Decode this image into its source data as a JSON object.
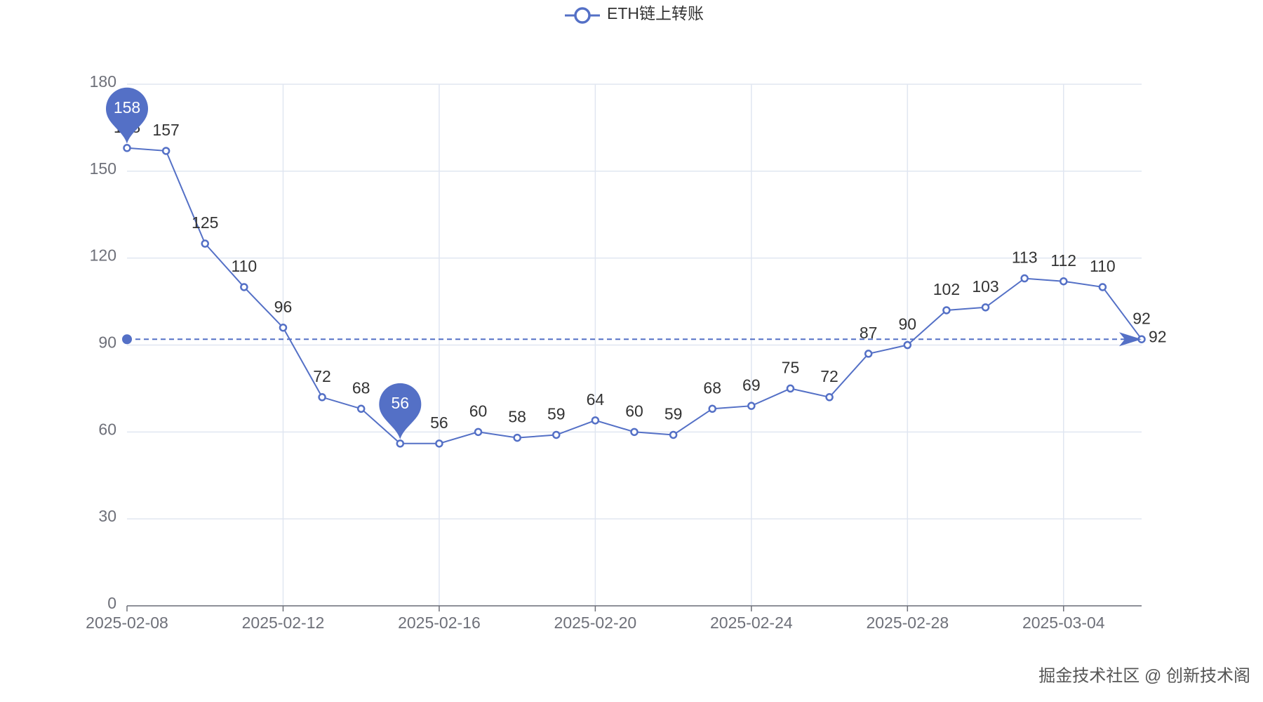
{
  "chart_data": {
    "type": "line",
    "x": [
      "2025-02-08",
      "2025-02-09",
      "2025-02-10",
      "2025-02-11",
      "2025-02-12",
      "2025-02-13",
      "2025-02-14",
      "2025-02-15",
      "2025-02-16",
      "2025-02-17",
      "2025-02-18",
      "2025-02-19",
      "2025-02-20",
      "2025-02-21",
      "2025-02-22",
      "2025-02-23",
      "2025-02-24",
      "2025-02-25",
      "2025-02-26",
      "2025-02-27",
      "2025-02-28",
      "2025-03-01",
      "2025-03-02",
      "2025-03-03",
      "2025-03-04",
      "2025-03-05",
      "2025-03-06"
    ],
    "series": [
      {
        "name": "ETH链上转账",
        "color": "#5470c6",
        "values": [
          158,
          157,
          125,
          110,
          96,
          72,
          68,
          56,
          56,
          60,
          58,
          59,
          64,
          60,
          59,
          68,
          69,
          75,
          72,
          87,
          90,
          102,
          103,
          113,
          112,
          110,
          92
        ]
      }
    ],
    "xlim": [
      "2025-02-08",
      "2025-03-06"
    ],
    "xticks": [
      "2025-02-08",
      "2025-02-12",
      "2025-02-16",
      "2025-02-20",
      "2025-02-24",
      "2025-02-28",
      "2025-03-04"
    ],
    "ylim": [
      0,
      180
    ],
    "yticks": [
      0,
      30,
      60,
      90,
      120,
      150,
      180
    ],
    "grid": true,
    "mark_points": [
      {
        "x": "2025-02-08",
        "value": 158
      },
      {
        "x": "2025-02-15",
        "value": 56
      }
    ],
    "mark_line": {
      "value": 92
    },
    "watermark": "掘金技术社区 @ 创新技术阁"
  }
}
